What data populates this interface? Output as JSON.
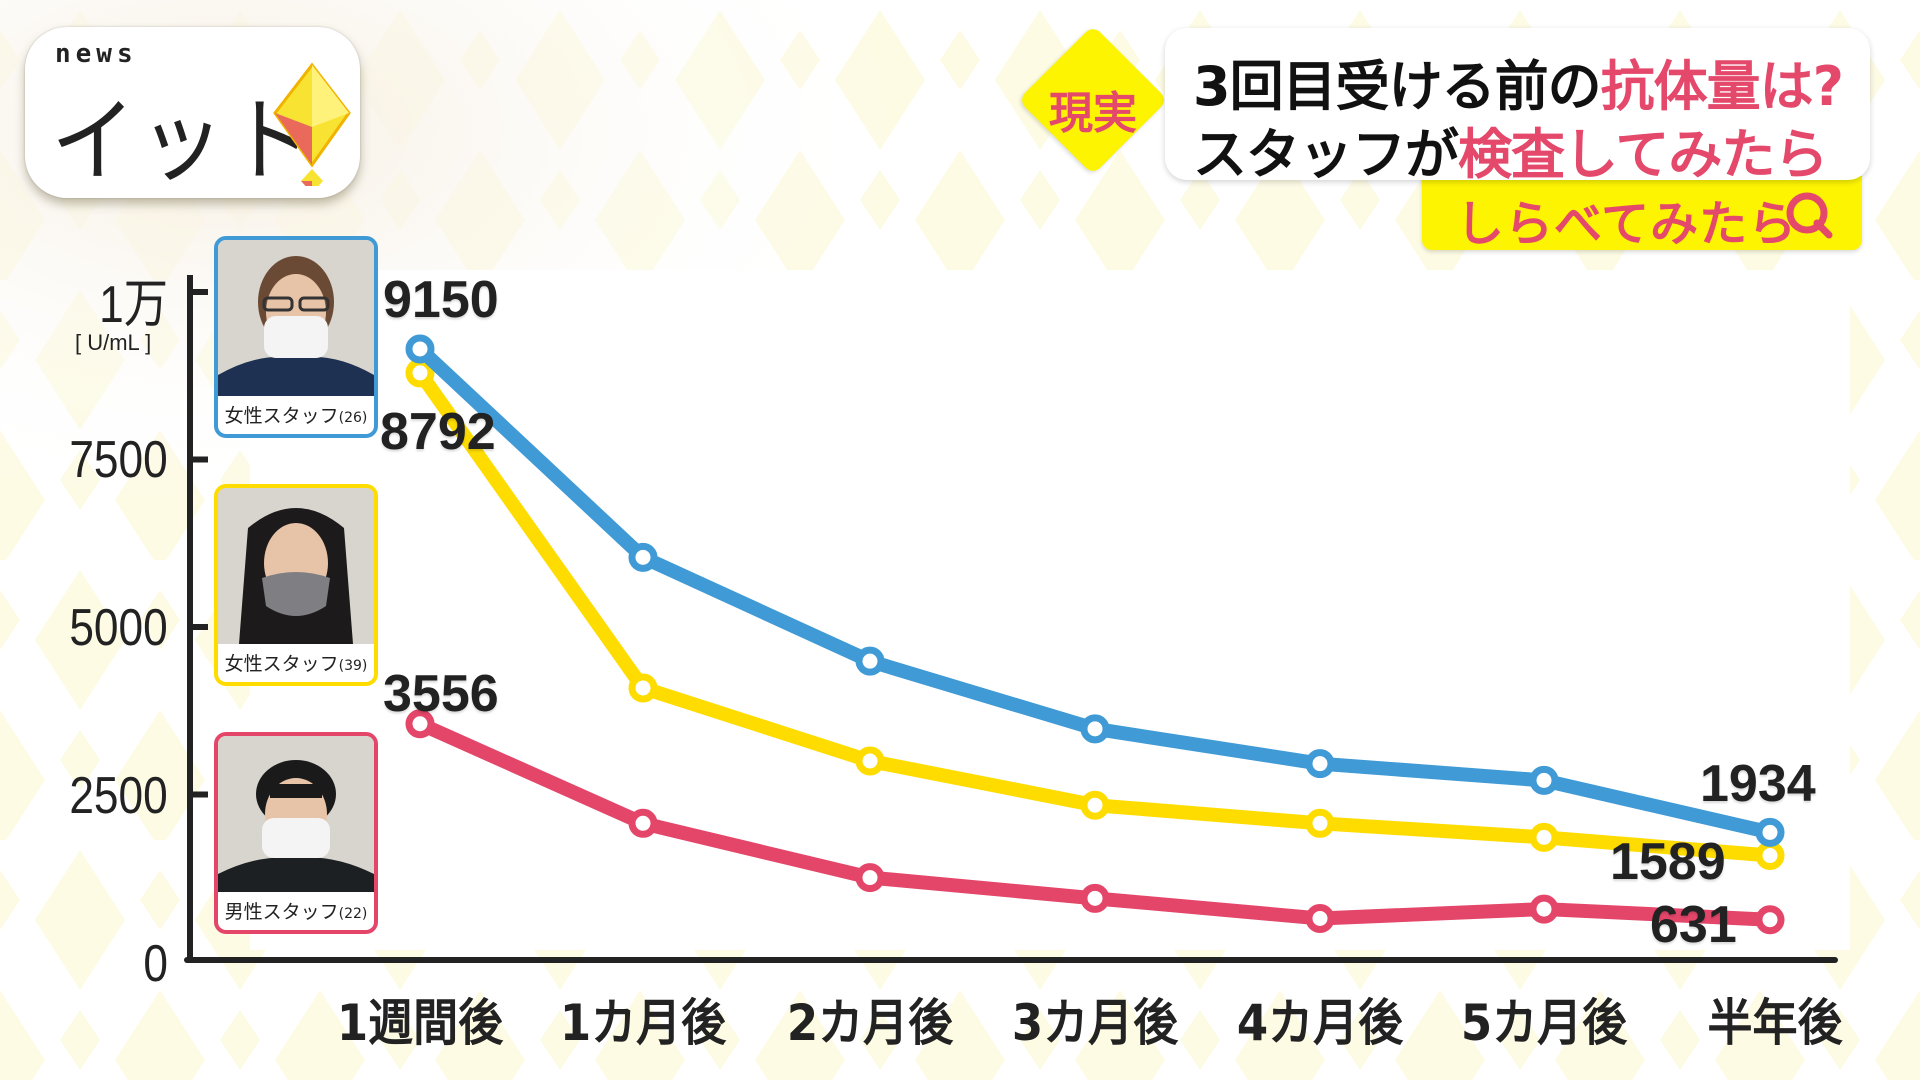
{
  "logo": {
    "news": "news",
    "name": "イット"
  },
  "header": {
    "tag": "現実",
    "title_line1_plain": "3回目受ける前の",
    "title_line1_highlight": "抗体量は?",
    "title_line2_plain": "スタッフが",
    "title_line2_highlight": "検査してみたら",
    "subtitle": "しらべてみたら",
    "subtitle_icon": "search-q-icon"
  },
  "colors": {
    "blue": "#3f9ad6",
    "yellow": "#fedc00",
    "red": "#e4466a",
    "accent_pink": "#e4486a",
    "accent_yellow": "#fcf400",
    "axis": "#222222"
  },
  "legend": [
    {
      "label": "女性スタッフ",
      "age": "(26)",
      "color": "#3f9ad6"
    },
    {
      "label": "女性スタッフ",
      "age": "(39)",
      "color": "#fedc00"
    },
    {
      "label": "男性スタッフ",
      "age": "(22)",
      "color": "#e4466a"
    }
  ],
  "chart_data": {
    "type": "line",
    "title": "3回目受ける前の抗体量は? スタッフが検査してみたら",
    "xlabel": "",
    "ylabel": "[ U/mL ]",
    "ylim": [
      0,
      10000
    ],
    "yticks": [
      {
        "value": 10000,
        "label": "1万"
      },
      {
        "value": 7500,
        "label": "7500"
      },
      {
        "value": 5000,
        "label": "5000"
      },
      {
        "value": 2500,
        "label": "2500"
      },
      {
        "value": 0,
        "label": "0"
      }
    ],
    "categories": [
      "1週間後",
      "1カ月後",
      "2カ月後",
      "3カ月後",
      "4カ月後",
      "5カ月後",
      "半年後"
    ],
    "grid": false,
    "series": [
      {
        "name": "女性スタッフ(26)",
        "color": "#3f9ad6",
        "values": [
          9150,
          6040,
          4490,
          3480,
          2960,
          2710,
          1934
        ]
      },
      {
        "name": "女性スタッフ(39)",
        "color": "#fedc00",
        "values": [
          8792,
          4090,
          3000,
          2340,
          2070,
          1860,
          1589
        ]
      },
      {
        "name": "男性スタッフ(22)",
        "color": "#e4466a",
        "values": [
          3556,
          2070,
          1260,
          950,
          650,
          790,
          631
        ]
      }
    ],
    "annotations": [
      {
        "series": 0,
        "point": 0,
        "text": "9150"
      },
      {
        "series": 1,
        "point": 0,
        "text": "8792"
      },
      {
        "series": 2,
        "point": 0,
        "text": "3556"
      },
      {
        "series": 0,
        "point": 6,
        "text": "1934"
      },
      {
        "series": 1,
        "point": 6,
        "text": "1589"
      },
      {
        "series": 2,
        "point": 6,
        "text": "631"
      }
    ]
  }
}
